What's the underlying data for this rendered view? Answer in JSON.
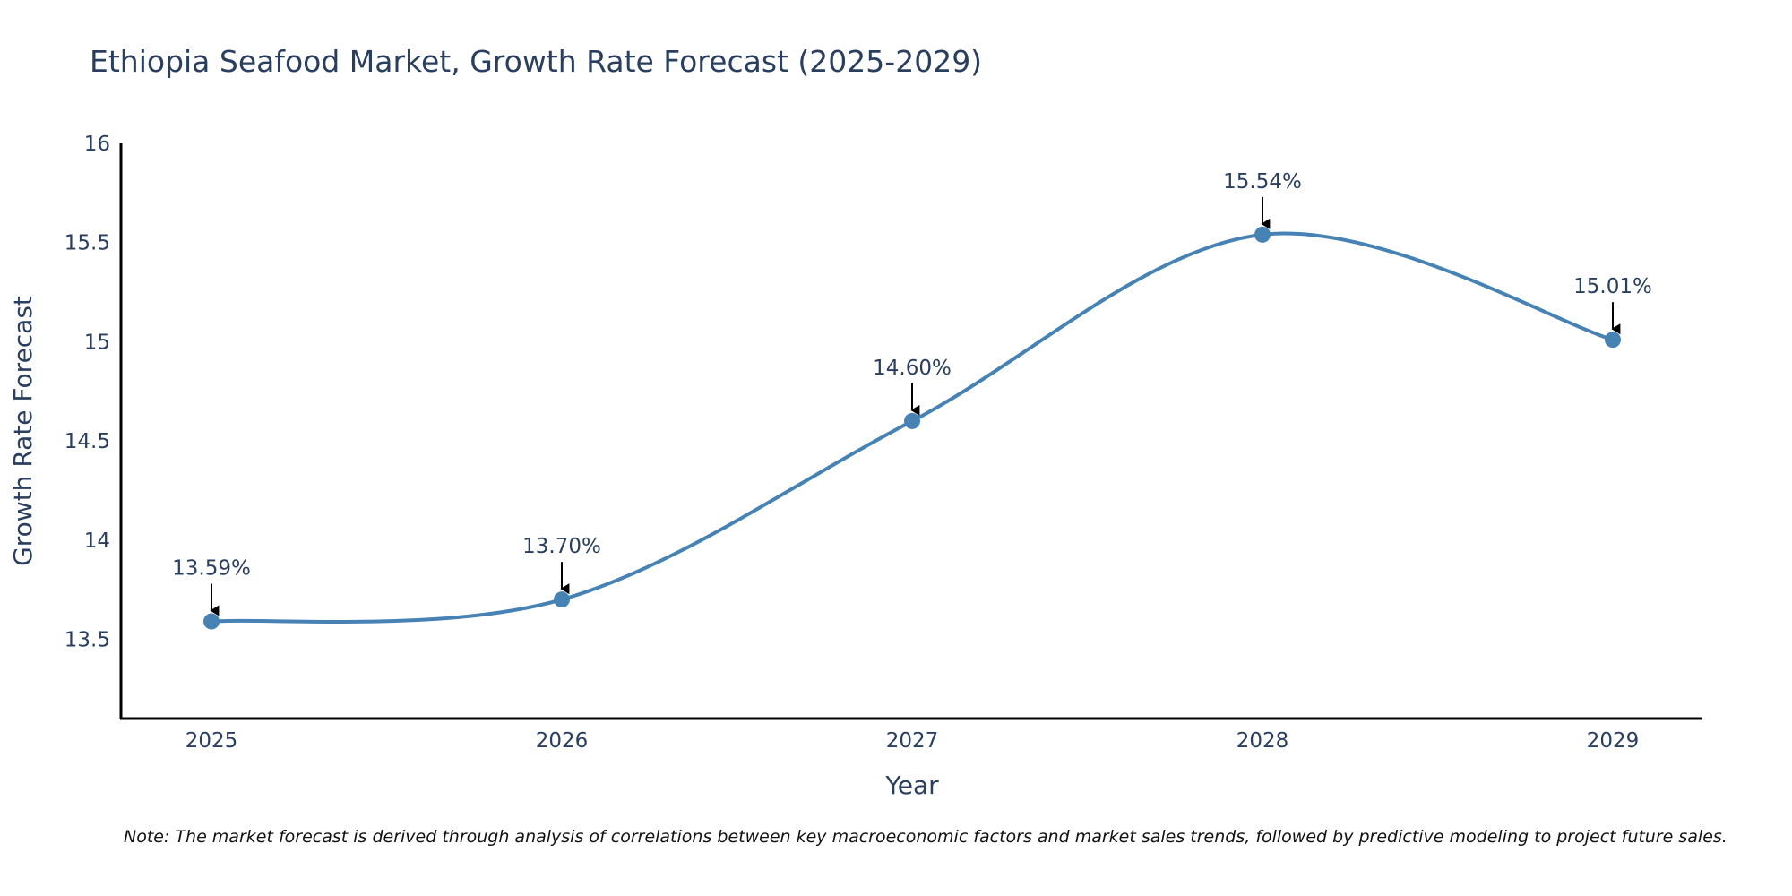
{
  "chart_data": {
    "type": "line",
    "title": "Ethiopia Seafood Market, Growth Rate Forecast (2025-2029)",
    "xlabel": "Year",
    "ylabel": "Growth Rate Forecast",
    "categories": [
      "2025",
      "2026",
      "2027",
      "2028",
      "2029"
    ],
    "values": [
      13.59,
      13.7,
      14.6,
      15.54,
      15.01
    ],
    "data_labels": [
      "13.59%",
      "13.70%",
      "14.60%",
      "15.54%",
      "15.01%"
    ],
    "ylim": [
      13.1,
      16.0
    ],
    "yticks": [
      13.5,
      14,
      14.5,
      15,
      15.5,
      16
    ],
    "ytick_labels": [
      "13.5",
      "14",
      "14.5",
      "15",
      "15.5",
      "16"
    ],
    "grid": false,
    "line_shape": "spline",
    "note": "Note: The market forecast is derived through analysis of correlations between key macroeconomic factors and market sales trends, followed by predictive modeling to project future sales."
  },
  "colors": {
    "series": "#4682b4",
    "text": "#2a3f5f",
    "axis": "#000000",
    "arrow": "#000000"
  }
}
